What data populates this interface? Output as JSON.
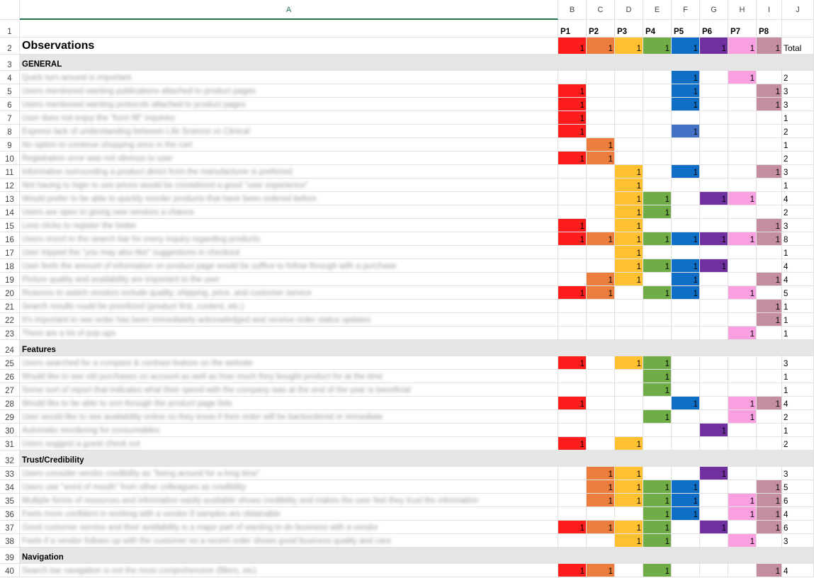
{
  "colors": {
    "P1": "#ff1c1c",
    "P2": "#ed7d3c",
    "P3": "#ffc12f",
    "P4": "#70ad47",
    "P5": "#0f6fc6",
    "P6": "#7030a0",
    "P7": "#f9a0e0",
    "P8": "#c58ea0",
    "P5alt": "#4472c4",
    "section": "#e6e6e6",
    "selected_header": "#217346"
  },
  "columns": [
    "A",
    "B",
    "C",
    "D",
    "E",
    "F",
    "G",
    "H",
    "I",
    "J"
  ],
  "participants": [
    "P1",
    "P2",
    "P3",
    "P4",
    "P5",
    "P6",
    "P7",
    "P8"
  ],
  "title": "Observations",
  "total_label": "Total",
  "rows": [
    {
      "n": "3",
      "section": "GENERAL"
    },
    {
      "n": "4",
      "text": "Quick turn around is important",
      "v": [
        0,
        0,
        0,
        0,
        1,
        0,
        1,
        0
      ],
      "total": "2"
    },
    {
      "n": "5",
      "text": "Users mentioned wanting publications attached to product pages",
      "v": [
        1,
        0,
        0,
        0,
        1,
        0,
        0,
        1
      ],
      "total": "3"
    },
    {
      "n": "6",
      "text": "Users mentioned wanting protocols attached to product pages",
      "v": [
        1,
        0,
        0,
        0,
        1,
        0,
        0,
        1
      ],
      "total": "3"
    },
    {
      "n": "7",
      "text": "User does not enjoy the \"form fill\" inquiries",
      "v": [
        1,
        0,
        0,
        0,
        0,
        0,
        0,
        0
      ],
      "total": "1"
    },
    {
      "n": "8",
      "text": "Express lack of understanding between Life Science vs Clinical",
      "v": [
        1,
        0,
        0,
        0,
        1,
        0,
        0,
        0
      ],
      "total": "2",
      "alt": [
        4
      ]
    },
    {
      "n": "9",
      "text": "No option to continue shopping once in the cart",
      "v": [
        0,
        1,
        0,
        0,
        0,
        0,
        0,
        0
      ],
      "total": "1"
    },
    {
      "n": "10",
      "text": "Registration error was not obvious to user",
      "v": [
        1,
        1,
        0,
        0,
        0,
        0,
        0,
        0
      ],
      "total": "2"
    },
    {
      "n": "11",
      "text": "Information surrounding a product direct from the manufacturer is preferred",
      "v": [
        0,
        0,
        1,
        0,
        1,
        0,
        0,
        1
      ],
      "total": "3"
    },
    {
      "n": "12",
      "text": "Not having to login to see prices would be considered a good \"user experience\"",
      "v": [
        0,
        0,
        1,
        0,
        0,
        0,
        0,
        0
      ],
      "total": "1"
    },
    {
      "n": "13",
      "text": "Would prefer to be able to quickly reorder products that have been ordered before",
      "v": [
        0,
        0,
        1,
        1,
        0,
        1,
        1,
        0
      ],
      "total": "4"
    },
    {
      "n": "14",
      "text": "Users are open to giving new vendors a chance",
      "v": [
        0,
        0,
        1,
        1,
        0,
        0,
        0,
        0
      ],
      "total": "2"
    },
    {
      "n": "15",
      "text": "Less clicks to register the better",
      "v": [
        1,
        0,
        1,
        0,
        0,
        0,
        0,
        1
      ],
      "total": "3"
    },
    {
      "n": "16",
      "text": "Users resort to the search bar for every inquiry regarding products",
      "v": [
        1,
        1,
        1,
        1,
        1,
        1,
        1,
        1
      ],
      "total": "8"
    },
    {
      "n": "17",
      "text": "User tripped the \"you may also like\" suggestions in checkout",
      "v": [
        0,
        0,
        1,
        0,
        0,
        0,
        0,
        0
      ],
      "total": "1"
    },
    {
      "n": "18",
      "text": "User feels the amount of information on product page would be suffice to follow through with a purchase",
      "v": [
        0,
        0,
        1,
        1,
        1,
        1,
        0,
        0
      ],
      "total": "4"
    },
    {
      "n": "19",
      "text": "Picture quality and availability are important to the user",
      "v": [
        0,
        1,
        1,
        0,
        1,
        0,
        0,
        1
      ],
      "total": "4"
    },
    {
      "n": "20",
      "text": "Reasons to switch vendors include quality, shipping, price, and customer service",
      "v": [
        1,
        1,
        0,
        1,
        1,
        0,
        1,
        0
      ],
      "total": "5"
    },
    {
      "n": "21",
      "text": "Search results could be prioritized (product first, content, etc.)",
      "v": [
        0,
        0,
        0,
        0,
        0,
        0,
        0,
        1
      ],
      "total": "1"
    },
    {
      "n": "22",
      "text": "It's important to see order has been immediately acknowledged and receive order status updates",
      "v": [
        0,
        0,
        0,
        0,
        0,
        0,
        0,
        1
      ],
      "total": "1"
    },
    {
      "n": "23",
      "text": "There are a lot of pop-ups",
      "v": [
        0,
        0,
        0,
        0,
        0,
        0,
        1,
        0
      ],
      "total": "1"
    },
    {
      "n": "24",
      "section": "Features"
    },
    {
      "n": "25",
      "text": "Users searched for a compare & contrast feature on the website",
      "v": [
        1,
        0,
        1,
        1,
        0,
        0,
        0,
        0
      ],
      "total": "3"
    },
    {
      "n": "26",
      "text": "Would like to see old purchases on account as well as how much they bought product for at the time",
      "v": [
        0,
        0,
        0,
        1,
        0,
        0,
        0,
        0
      ],
      "total": "1"
    },
    {
      "n": "27",
      "text": "Some sort of report that indicates what their spend with the company was at the end of the year is beneficial",
      "v": [
        0,
        0,
        0,
        1,
        0,
        0,
        0,
        0
      ],
      "total": "1"
    },
    {
      "n": "28",
      "text": "Would like to be able to sort through the product page lists",
      "v": [
        1,
        0,
        0,
        0,
        1,
        0,
        1,
        1
      ],
      "total": "4"
    },
    {
      "n": "29",
      "text": "User would like to see availability online so they know if their order will be backordered or immediate",
      "v": [
        0,
        0,
        0,
        1,
        0,
        0,
        1,
        0
      ],
      "total": "2"
    },
    {
      "n": "30",
      "text": "Automatic reordering for consumables",
      "v": [
        0,
        0,
        0,
        0,
        0,
        1,
        0,
        0
      ],
      "total": "1"
    },
    {
      "n": "31",
      "text": "Users suggest a guest check out",
      "v": [
        1,
        0,
        1,
        0,
        0,
        0,
        0,
        0
      ],
      "total": "2"
    },
    {
      "n": "32",
      "section": "Trust/Credibility"
    },
    {
      "n": "33",
      "text": "Users consider vendor credibility as \"being around for a long time\"",
      "v": [
        0,
        1,
        1,
        0,
        0,
        1,
        0,
        0
      ],
      "total": "3"
    },
    {
      "n": "34",
      "text": "Users use \"word of mouth\" from other colleagues as credibility",
      "v": [
        0,
        1,
        1,
        1,
        1,
        0,
        0,
        1
      ],
      "total": "5"
    },
    {
      "n": "35",
      "text": "Multiple forms of resources and information easily available shows credibility and makes the user feel they trust the information",
      "v": [
        0,
        1,
        1,
        1,
        1,
        0,
        1,
        1
      ],
      "total": "6"
    },
    {
      "n": "36",
      "text": "Feels more confident in working with a vendor if samples are obtainable",
      "v": [
        0,
        0,
        0,
        1,
        1,
        0,
        1,
        1
      ],
      "total": "4"
    },
    {
      "n": "37",
      "text": "Good customer service and their availability is a major part of wanting to do business with a vendor",
      "v": [
        1,
        1,
        1,
        1,
        0,
        1,
        0,
        1
      ],
      "total": "6"
    },
    {
      "n": "38",
      "text": "Feels if a vendor follows up with the customer on a recent order shows good business quality and care",
      "v": [
        0,
        0,
        1,
        1,
        0,
        0,
        1,
        0
      ],
      "total": "3"
    },
    {
      "n": "39",
      "section": "Navigation"
    },
    {
      "n": "40",
      "text": "Search bar navigation is not the most comprehensive (filters, etc)",
      "v": [
        1,
        1,
        0,
        1,
        0,
        0,
        0,
        1
      ],
      "total": "4"
    }
  ]
}
